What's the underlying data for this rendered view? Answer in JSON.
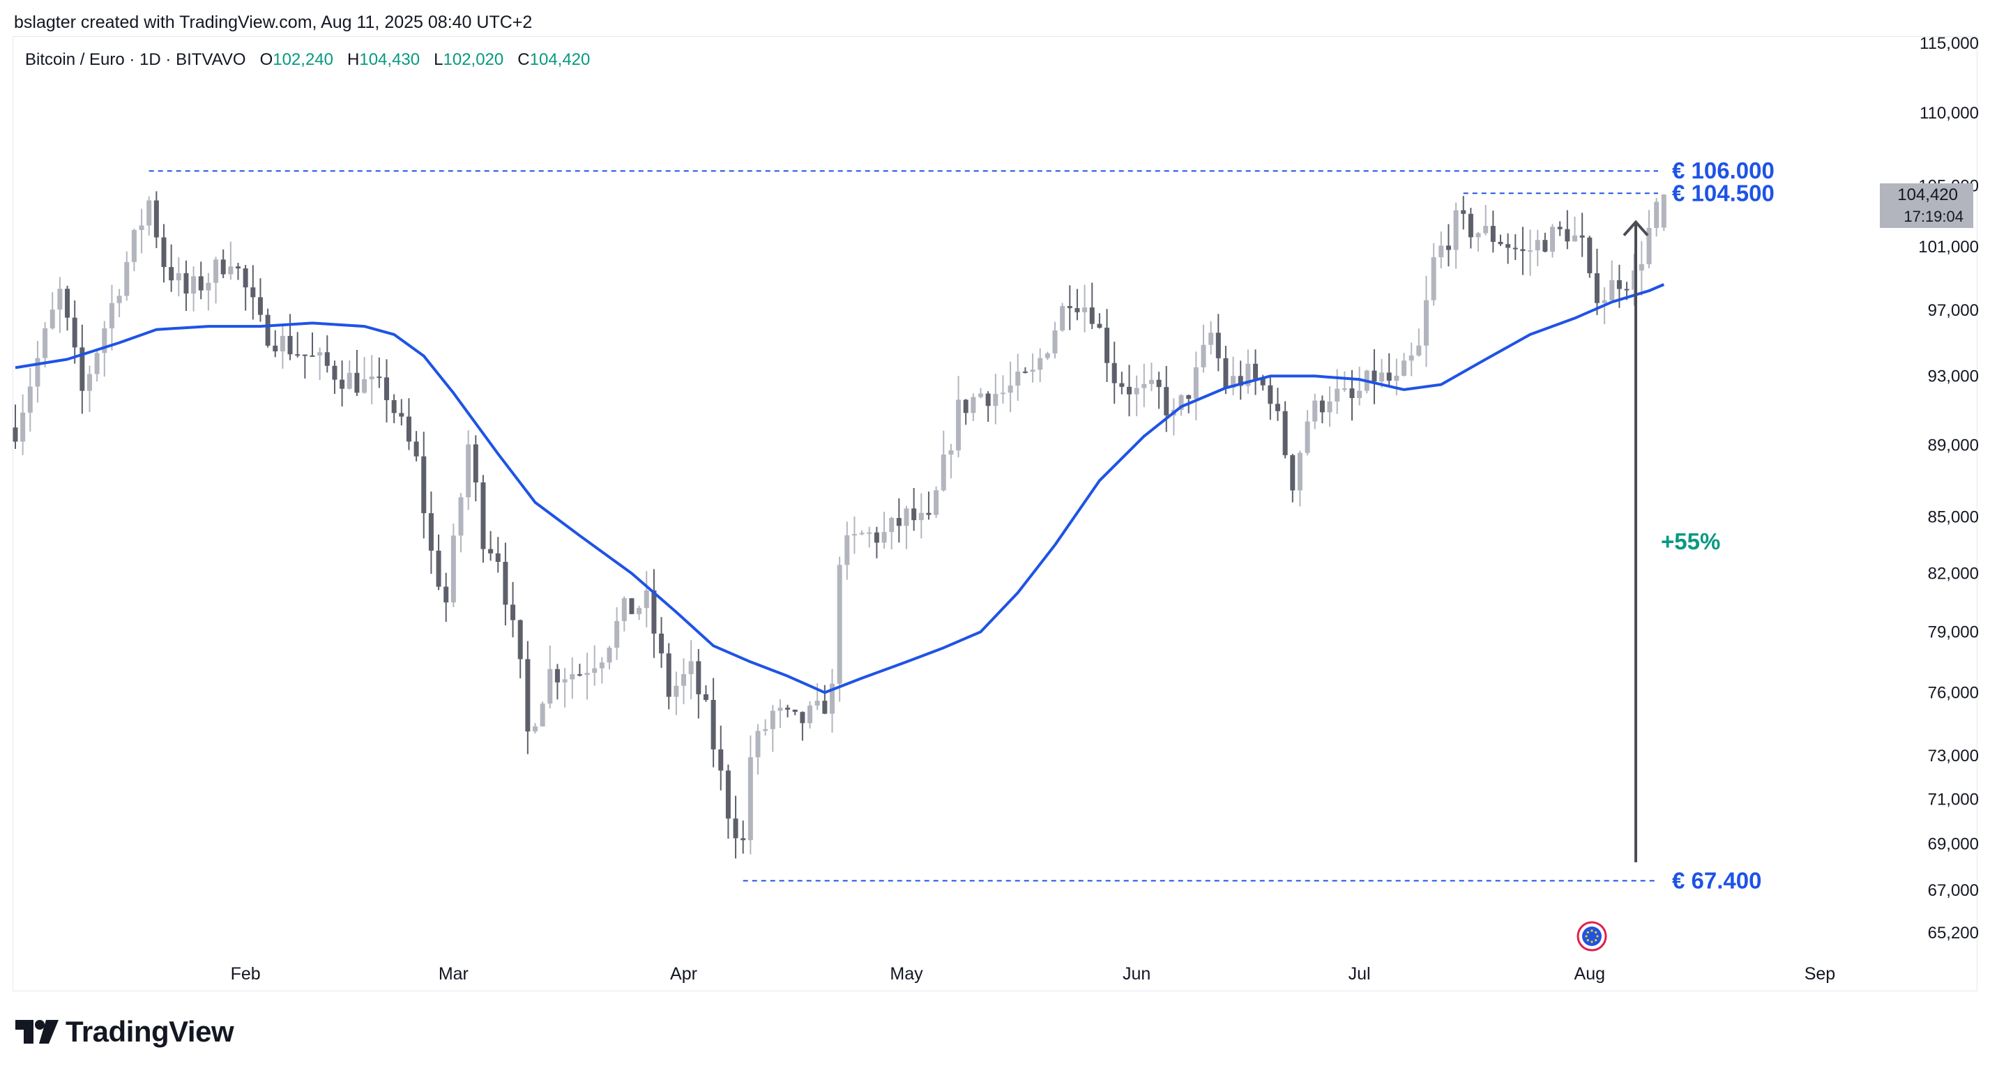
{
  "credit": "bslagter created with TradingView.com, Aug 11, 2025 08:40 UTC+2",
  "legend": {
    "symbol": "Bitcoin / Euro · 1D · BITVAVO",
    "o_label": "O",
    "o": "102,240",
    "h_label": "H",
    "h": "104,430",
    "l_label": "L",
    "l": "102,020",
    "c_label": "C",
    "c": "104,420"
  },
  "brand": "TradingView",
  "colors": {
    "up": "#b2b5be",
    "down": "#5d606b",
    "ma": "#1e53e5",
    "level": "#1e53e5",
    "arrow": "#4a4d55",
    "percent": "#089981"
  },
  "chart_data": {
    "type": "candlestick",
    "title": "Bitcoin / Euro · 1D · BITVAVO",
    "xlabel": "",
    "ylabel": "",
    "y_scale": "log",
    "ylim": [
      64000,
      116000
    ],
    "y_ticks": [
      "115,000",
      "110,000",
      "105,000",
      "101,000",
      "97,000",
      "93,000",
      "89,000",
      "85,000",
      "82,000",
      "79,000",
      "76,000",
      "73,000",
      "71,000",
      "69,000",
      "67,000",
      "65,200"
    ],
    "x_ticks": [
      "Feb",
      "Mar",
      "Apr",
      "May",
      "Jun",
      "Jul",
      "Aug",
      "Sep"
    ],
    "price_label": {
      "value": "104,420",
      "countdown": "17:19:04"
    },
    "levels": [
      {
        "label": "€ 106.000",
        "value": 106000
      },
      {
        "label": "€ 104.500",
        "value": 104500
      },
      {
        "label": "€ 67.400",
        "value": 67400
      }
    ],
    "change_label": "+55%",
    "close_path": [
      [
        "2025-01-01",
        90000
      ],
      [
        "2025-01-04",
        94000
      ],
      [
        "2025-01-07",
        98000
      ],
      [
        "2025-01-10",
        92000
      ],
      [
        "2025-01-13",
        96000
      ],
      [
        "2025-01-16",
        100000
      ],
      [
        "2025-01-19",
        104000
      ],
      [
        "2025-01-21",
        100000
      ],
      [
        "2025-01-24",
        98000
      ],
      [
        "2025-01-27",
        99000
      ],
      [
        "2025-01-30",
        100500
      ],
      [
        "2025-02-03",
        96000
      ],
      [
        "2025-02-06",
        95000
      ],
      [
        "2025-02-10",
        94000
      ],
      [
        "2025-02-14",
        93000
      ],
      [
        "2025-02-17",
        92500
      ],
      [
        "2025-02-20",
        92000
      ],
      [
        "2025-02-24",
        88000
      ],
      [
        "2025-02-26",
        83000
      ],
      [
        "2025-02-28",
        80500
      ],
      [
        "2025-03-03",
        89000
      ],
      [
        "2025-03-05",
        84000
      ],
      [
        "2025-03-07",
        83000
      ],
      [
        "2025-03-10",
        77000
      ],
      [
        "2025-03-11",
        74000
      ],
      [
        "2025-03-14",
        77000
      ],
      [
        "2025-03-18",
        77000
      ],
      [
        "2025-03-21",
        78000
      ],
      [
        "2025-03-24",
        80000
      ],
      [
        "2025-03-27",
        80500
      ],
      [
        "2025-03-30",
        76000
      ],
      [
        "2025-04-02",
        77000
      ],
      [
        "2025-04-04",
        75000
      ],
      [
        "2025-04-07",
        70500
      ],
      [
        "2025-04-09",
        69000
      ],
      [
        "2025-04-10",
        73000
      ],
      [
        "2025-04-13",
        75000
      ],
      [
        "2025-04-16",
        74500
      ],
      [
        "2025-04-19",
        75000
      ],
      [
        "2025-04-21",
        76000
      ],
      [
        "2025-04-22",
        83000
      ],
      [
        "2025-04-25",
        84000
      ],
      [
        "2025-04-28",
        84000
      ],
      [
        "2025-05-01",
        85000
      ],
      [
        "2025-05-04",
        84500
      ],
      [
        "2025-05-08",
        91000
      ],
      [
        "2025-05-11",
        92000
      ],
      [
        "2025-05-14",
        92000
      ],
      [
        "2025-05-18",
        93000
      ],
      [
        "2025-05-21",
        96000
      ],
      [
        "2025-05-23",
        98000
      ],
      [
        "2025-05-26",
        97000
      ],
      [
        "2025-05-29",
        93000
      ],
      [
        "2025-06-01",
        92000
      ],
      [
        "2025-06-04",
        92000
      ],
      [
        "2025-06-06",
        90500
      ],
      [
        "2025-06-09",
        93000
      ],
      [
        "2025-06-11",
        95500
      ],
      [
        "2025-06-13",
        92500
      ],
      [
        "2025-06-16",
        93000
      ],
      [
        "2025-06-19",
        92000
      ],
      [
        "2025-06-22",
        87000
      ],
      [
        "2025-06-24",
        90500
      ],
      [
        "2025-06-27",
        92000
      ],
      [
        "2025-06-30",
        91500
      ],
      [
        "2025-07-03",
        93000
      ],
      [
        "2025-07-06",
        92500
      ],
      [
        "2025-07-09",
        94500
      ],
      [
        "2025-07-11",
        100000
      ],
      [
        "2025-07-14",
        102500
      ],
      [
        "2025-07-17",
        102000
      ],
      [
        "2025-07-20",
        101500
      ],
      [
        "2025-07-23",
        100500
      ],
      [
        "2025-07-26",
        101500
      ],
      [
        "2025-07-29",
        102000
      ],
      [
        "2025-07-31",
        101000
      ],
      [
        "2025-08-01",
        98500
      ],
      [
        "2025-08-03",
        98000
      ],
      [
        "2025-08-05",
        99000
      ],
      [
        "2025-08-07",
        99000
      ],
      [
        "2025-08-09",
        102000
      ],
      [
        "2025-08-11",
        104420
      ]
    ],
    "ma_path": [
      [
        "2025-01-01",
        93500
      ],
      [
        "2025-01-08",
        94000
      ],
      [
        "2025-01-15",
        95000
      ],
      [
        "2025-01-20",
        95800
      ],
      [
        "2025-01-27",
        96000
      ],
      [
        "2025-02-03",
        96000
      ],
      [
        "2025-02-10",
        96200
      ],
      [
        "2025-02-17",
        96000
      ],
      [
        "2025-02-21",
        95500
      ],
      [
        "2025-02-25",
        94200
      ],
      [
        "2025-03-01",
        92000
      ],
      [
        "2025-03-07",
        88500
      ],
      [
        "2025-03-12",
        85800
      ],
      [
        "2025-03-18",
        84000
      ],
      [
        "2025-03-25",
        82000
      ],
      [
        "2025-03-31",
        80000
      ],
      [
        "2025-04-05",
        78300
      ],
      [
        "2025-04-10",
        77500
      ],
      [
        "2025-04-15",
        76800
      ],
      [
        "2025-04-20",
        76000
      ],
      [
        "2025-04-25",
        76700
      ],
      [
        "2025-05-01",
        77500
      ],
      [
        "2025-05-06",
        78200
      ],
      [
        "2025-05-11",
        79000
      ],
      [
        "2025-05-16",
        81000
      ],
      [
        "2025-05-21",
        83500
      ],
      [
        "2025-05-27",
        87000
      ],
      [
        "2025-06-02",
        89500
      ],
      [
        "2025-06-07",
        91200
      ],
      [
        "2025-06-13",
        92300
      ],
      [
        "2025-06-19",
        93000
      ],
      [
        "2025-06-25",
        93000
      ],
      [
        "2025-07-01",
        92800
      ],
      [
        "2025-07-07",
        92200
      ],
      [
        "2025-07-12",
        92500
      ],
      [
        "2025-07-18",
        94000
      ],
      [
        "2025-07-24",
        95500
      ],
      [
        "2025-07-30",
        96500
      ],
      [
        "2025-08-04",
        97500
      ],
      [
        "2025-08-09",
        98200
      ],
      [
        "2025-08-11",
        98600
      ]
    ]
  }
}
